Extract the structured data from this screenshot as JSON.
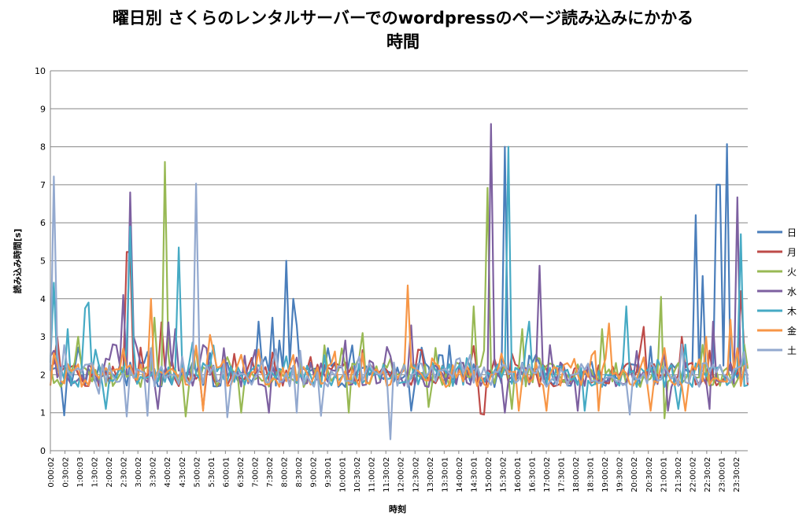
{
  "chart_data": {
    "type": "line",
    "title_line1": "曜日別 さくらのレンタルサーバーでのwordpressのページ読み込みにかかる",
    "title_line2": "時間",
    "xlabel": "時刻",
    "ylabel": "読み込み時間[s]",
    "ylim": [
      0,
      10
    ],
    "yticks": [
      0,
      1,
      2,
      3,
      4,
      5,
      6,
      7,
      8,
      9,
      10
    ],
    "grid": true,
    "legend_position": "right",
    "x_tick_labels": [
      "0:00:02",
      "0:30:02",
      "1:00:03",
      "1:30:02",
      "2:00:02",
      "2:30:02",
      "3:00:02",
      "3:30:02",
      "4:00:02",
      "4:30:02",
      "5:00:02",
      "5:30:01",
      "6:00:01",
      "6:30:02",
      "7:00:02",
      "7:30:02",
      "8:00:02",
      "8:30:02",
      "9:00:02",
      "9:30:01",
      "10:00:01",
      "10:30:02",
      "11:00:02",
      "11:30:02",
      "12:00:02",
      "12:30:02",
      "13:00:02",
      "13:30:01",
      "14:00:02",
      "14:30:01",
      "15:00:02",
      "15:30:02",
      "16:00:01",
      "16:30:01",
      "17:00:02",
      "17:30:01",
      "18:00:02",
      "18:30:01",
      "19:00:02",
      "19:30:02",
      "20:00:02",
      "20:30:02",
      "21:00:01",
      "21:30:02",
      "22:00:02",
      "22:30:02",
      "23:00:01",
      "23:30:02"
    ],
    "series": [
      {
        "name": "日",
        "color": "#4a7ebb",
        "peaks": [
          [
            4,
            0.93
          ],
          [
            60,
            3.4
          ],
          [
            64,
            3.5
          ],
          [
            66,
            2.9
          ],
          [
            68,
            5.0
          ],
          [
            70,
            4.0
          ],
          [
            71,
            3.3
          ],
          [
            80,
            2.7
          ],
          [
            104,
            1.05
          ],
          [
            131,
            8.0
          ],
          [
            186,
            6.2
          ],
          [
            188,
            4.6
          ],
          [
            192,
            7.0
          ],
          [
            193,
            7.0
          ],
          [
            195,
            8.07
          ],
          [
            197,
            2.2
          ]
        ]
      },
      {
        "name": "月",
        "color": "#be4b48",
        "peaks": [
          [
            2,
            3.0
          ],
          [
            22,
            5.23
          ],
          [
            23,
            5.23
          ],
          [
            29,
            2.7
          ],
          [
            32,
            3.38
          ],
          [
            44,
            1.1
          ],
          [
            124,
            0.97
          ],
          [
            125,
            0.95
          ],
          [
            129,
            2.1
          ],
          [
            171,
            3.26
          ],
          [
            182,
            3.0
          ],
          [
            199,
            4.2
          ]
        ]
      },
      {
        "name": "火",
        "color": "#98b954",
        "peaks": [
          [
            8,
            3.0
          ],
          [
            30,
            3.5
          ],
          [
            33,
            7.6
          ],
          [
            39,
            0.9
          ],
          [
            55,
            1.0
          ],
          [
            86,
            1.0
          ],
          [
            90,
            3.1
          ],
          [
            102,
            2.3
          ],
          [
            109,
            1.15
          ],
          [
            122,
            3.8
          ],
          [
            126,
            6.92
          ],
          [
            133,
            1.1
          ],
          [
            136,
            3.2
          ],
          [
            159,
            3.2
          ],
          [
            176,
            4.05
          ],
          [
            177,
            0.85
          ]
        ]
      },
      {
        "name": "水",
        "color": "#7d60a0",
        "peaks": [
          [
            18,
            2.8
          ],
          [
            21,
            4.1
          ],
          [
            23,
            6.8
          ],
          [
            24,
            3.0
          ],
          [
            31,
            1.1
          ],
          [
            34,
            3.38
          ],
          [
            36,
            3.2
          ],
          [
            45,
            2.7
          ],
          [
            50,
            2.7
          ],
          [
            59,
            2.65
          ],
          [
            63,
            1.0
          ],
          [
            85,
            2.9
          ],
          [
            104,
            3.3
          ],
          [
            127,
            8.6
          ],
          [
            131,
            1.0
          ],
          [
            141,
            4.87
          ],
          [
            152,
            1.05
          ],
          [
            178,
            1.05
          ],
          [
            190,
            1.1
          ],
          [
            191,
            3.4
          ],
          [
            198,
            6.67
          ]
        ]
      },
      {
        "name": "木",
        "color": "#46aac4",
        "peaks": [
          [
            1,
            4.42
          ],
          [
            5,
            3.2
          ],
          [
            10,
            3.75
          ],
          [
            11,
            3.9
          ],
          [
            16,
            1.1
          ],
          [
            23,
            5.9
          ],
          [
            37,
            5.35
          ],
          [
            41,
            2.85
          ],
          [
            132,
            8.0
          ],
          [
            138,
            3.4
          ],
          [
            154,
            1.05
          ],
          [
            166,
            3.8
          ],
          [
            181,
            1.1
          ],
          [
            199,
            5.7
          ]
        ]
      },
      {
        "name": "金",
        "color": "#f79646",
        "peaks": [
          [
            29,
            4.0
          ],
          [
            44,
            1.05
          ],
          [
            46,
            3.05
          ],
          [
            103,
            4.35
          ],
          [
            122,
            2.1
          ],
          [
            135,
            1.05
          ],
          [
            143,
            1.05
          ],
          [
            158,
            1.05
          ],
          [
            161,
            3.35
          ],
          [
            173,
            1.05
          ],
          [
            183,
            1.05
          ],
          [
            189,
            3.0
          ],
          [
            196,
            3.45
          ],
          [
            198,
            2.7
          ]
        ]
      },
      {
        "name": "土",
        "color": "#93a9cf",
        "peaks": [
          [
            0,
            2.1
          ],
          [
            1,
            7.22
          ],
          [
            14,
            1.5
          ],
          [
            22,
            0.9
          ],
          [
            28,
            0.92
          ],
          [
            42,
            7.03
          ],
          [
            51,
            0.88
          ],
          [
            71,
            1.0
          ],
          [
            78,
            0.92
          ],
          [
            92,
            2.3
          ],
          [
            98,
            0.3
          ],
          [
            167,
            0.95
          ],
          [
            170,
            1.9
          ],
          [
            200,
            2.6
          ]
        ]
      }
    ]
  }
}
